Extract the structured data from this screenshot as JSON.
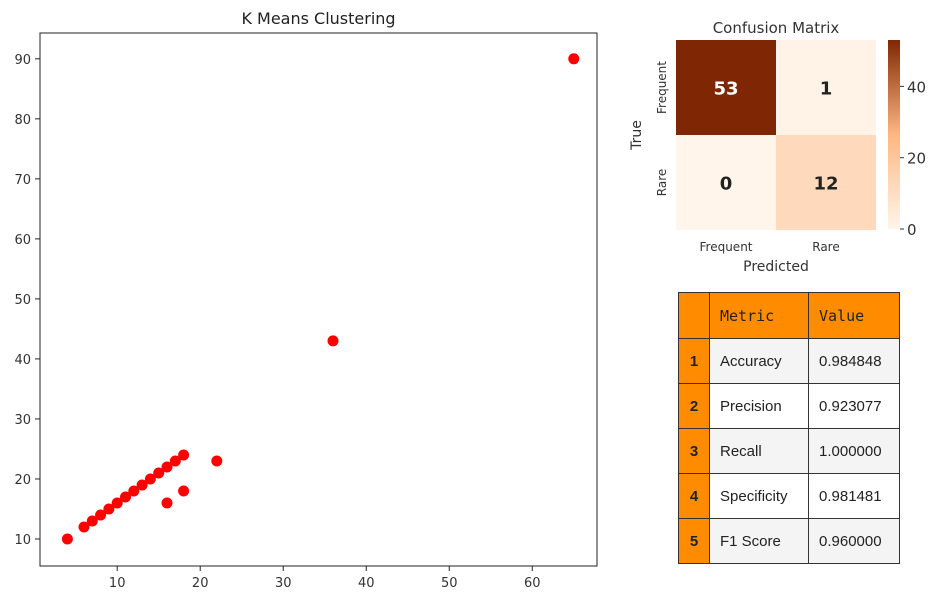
{
  "chart_data": [
    {
      "type": "scatter",
      "title": "K Means Clustering",
      "xlabel": "",
      "ylabel": "",
      "xlim": [
        0.7,
        67.8
      ],
      "ylim": [
        5.5,
        94.3
      ],
      "xticks": [
        10,
        20,
        30,
        40,
        50,
        60
      ],
      "yticks": [
        10,
        20,
        30,
        40,
        50,
        60,
        70,
        80,
        90
      ],
      "color": "#ff0000",
      "points": [
        [
          4,
          10
        ],
        [
          6,
          12
        ],
        [
          7,
          13
        ],
        [
          8,
          14
        ],
        [
          9,
          15
        ],
        [
          10,
          16
        ],
        [
          11,
          17
        ],
        [
          12,
          18
        ],
        [
          13,
          19
        ],
        [
          14,
          20
        ],
        [
          15,
          21
        ],
        [
          16,
          22
        ],
        [
          17,
          23
        ],
        [
          18,
          24
        ],
        [
          16,
          16
        ],
        [
          18,
          18
        ],
        [
          22,
          23
        ],
        [
          36,
          43
        ],
        [
          65,
          90
        ]
      ]
    },
    {
      "type": "heatmap",
      "title": "Confusion Matrix",
      "xlabel": "Predicted",
      "ylabel": "True",
      "xcategories": [
        "Frequent",
        "Rare"
      ],
      "ycategories": [
        "Frequent",
        "Rare"
      ],
      "values": [
        [
          53,
          1
        ],
        [
          0,
          12
        ]
      ],
      "colorbar_ticks": [
        0,
        20,
        40
      ],
      "colorbar_range": [
        0,
        53
      ]
    }
  ],
  "table": {
    "headers": [
      "Metric",
      "Value"
    ],
    "rows": [
      {
        "i": "1",
        "m": "Accuracy",
        "v": "0.984848"
      },
      {
        "i": "2",
        "m": "Precision",
        "v": "0.923077"
      },
      {
        "i": "3",
        "m": "Recall",
        "v": "1.000000"
      },
      {
        "i": "4",
        "m": "Specificity",
        "v": "0.981481"
      },
      {
        "i": "5",
        "m": "F1 Score",
        "v": "0.960000"
      }
    ]
  }
}
